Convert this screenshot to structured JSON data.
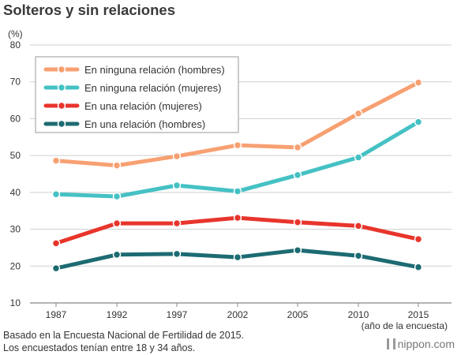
{
  "chart_data": {
    "type": "line",
    "title": "Solteros y sin relaciones",
    "ylabel": "(%)",
    "xlabel": "(año de la encuesta)",
    "x": [
      "1987",
      "1992",
      "1997",
      "2002",
      "2005",
      "2010",
      "2015"
    ],
    "y_ticks": [
      10,
      20,
      30,
      40,
      50,
      60,
      70,
      80
    ],
    "ylim": [
      10,
      80
    ],
    "grid": true,
    "legend_position": "top-left",
    "series": [
      {
        "name": "En ninguna relación (hombres)",
        "color": "#f7a072",
        "values": [
          48.6,
          47.3,
          49.8,
          52.8,
          52.2,
          61.4,
          69.8
        ]
      },
      {
        "name": "En ninguna relación (mujeres)",
        "color": "#45c1c4",
        "values": [
          39.5,
          38.9,
          41.9,
          40.3,
          44.7,
          49.5,
          59.1
        ]
      },
      {
        "name": "En una relación (mujeres)",
        "color": "#e8352c",
        "values": [
          26.2,
          31.6,
          31.6,
          33.1,
          31.9,
          30.9,
          27.3
        ]
      },
      {
        "name": "En una relación (hombres)",
        "color": "#1d6b72",
        "values": [
          19.4,
          23.1,
          23.3,
          22.4,
          24.3,
          22.8,
          19.7
        ]
      }
    ]
  },
  "footnote": {
    "line1": "Basado en la Encuesta Nacional de Fertilidad de 2015.",
    "line2": "Los encuestados tenían entre 18 y 34 años."
  },
  "brand": "nippon.com"
}
